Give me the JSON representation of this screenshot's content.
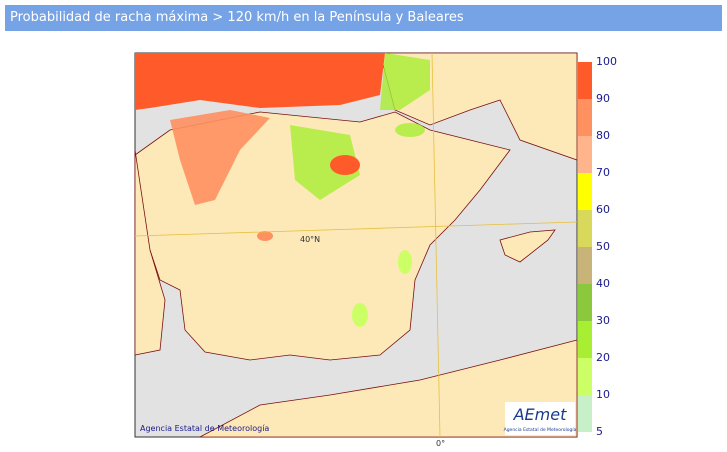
{
  "header": {
    "title": "Probabilidad de racha máxima > 120 km/h en la Península y Baleares"
  },
  "map": {
    "credit": "Agencia Estatal de Meteorología",
    "logo": "AEmet",
    "logo_subtitle": "Agencia Estatal de Meteorología",
    "lat_label": "40°N",
    "lon_label": "0°"
  },
  "legend": {
    "ticks": [
      5,
      10,
      20,
      30,
      40,
      50,
      60,
      70,
      80,
      90,
      100
    ],
    "colors": [
      "#c8f0c8",
      "#ccff66",
      "#a8ee33",
      "#8cc83c",
      "#c8b478",
      "#d8d85a",
      "#ffff00",
      "#ffb48c",
      "#ff9060",
      "#ff5a2a"
    ]
  }
}
